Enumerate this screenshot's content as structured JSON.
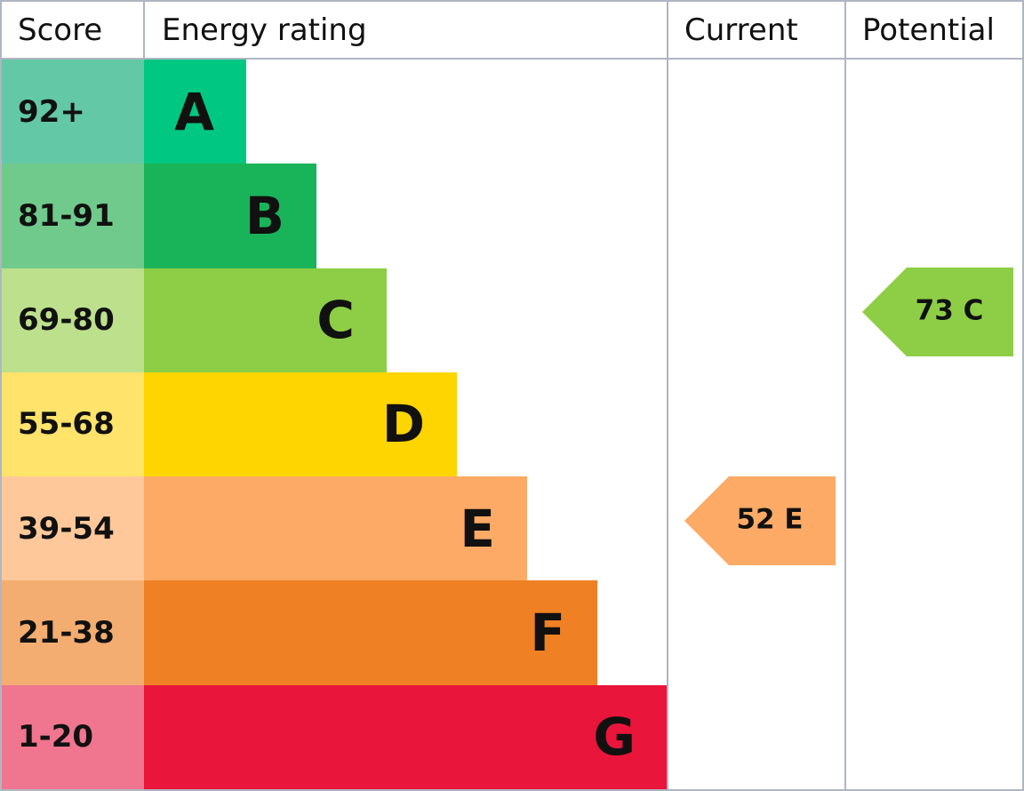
{
  "header": {
    "score": "Score",
    "energy_rating": "Energy rating",
    "current": "Current",
    "potential": "Potential"
  },
  "rows": [
    {
      "score": "92+",
      "letter": "A",
      "color": "#00c781",
      "score_color": "#63c8a5"
    },
    {
      "score": "81-91",
      "letter": "B",
      "color": "#19b459",
      "score_color": "#70ca8b"
    },
    {
      "score": "69-80",
      "letter": "C",
      "color": "#8dce46",
      "score_color": "#bce08c"
    },
    {
      "score": "55-68",
      "letter": "D",
      "color": "#ffd500",
      "score_color": "#ffe36a"
    },
    {
      "score": "39-54",
      "letter": "E",
      "color": "#fcaa65",
      "score_color": "#fec89a"
    },
    {
      "score": "21-38",
      "letter": "F",
      "color": "#ef8023",
      "score_color": "#f3ad70"
    },
    {
      "score": "1-20",
      "letter": "G",
      "color": "#e9153b",
      "score_color": "#f0758e"
    }
  ],
  "current": {
    "label": "52 E",
    "color": "#fcaa65"
  },
  "potential": {
    "label": "73 C",
    "color": "#8dce46"
  }
}
